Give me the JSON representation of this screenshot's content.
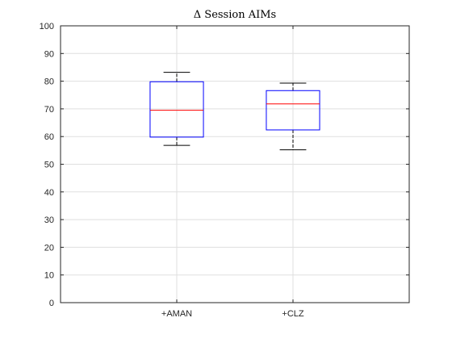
{
  "chart_data": {
    "type": "boxplot",
    "title": "Δ Session AIMs",
    "xlabel": "",
    "ylabel": "",
    "ylim": [
      0,
      100
    ],
    "yticks": [
      0,
      10,
      20,
      30,
      40,
      50,
      60,
      70,
      80,
      90,
      100
    ],
    "grid": true,
    "categories": [
      "+AMAN",
      "+CLZ"
    ],
    "boxes": [
      {
        "category": "+AMAN",
        "whisker_low": 56.8,
        "q1": 59.8,
        "median": 69.5,
        "q3": 79.8,
        "whisker_high": 83.2
      },
      {
        "category": "+CLZ",
        "whisker_low": 55.2,
        "q1": 62.4,
        "median": 71.8,
        "q3": 76.6,
        "whisker_high": 79.3
      }
    ],
    "colors": {
      "box": "#0000ff",
      "median": "#ff0000",
      "whisker": "#000000",
      "grid": "#dfdfdf",
      "axis": "#262626"
    }
  }
}
